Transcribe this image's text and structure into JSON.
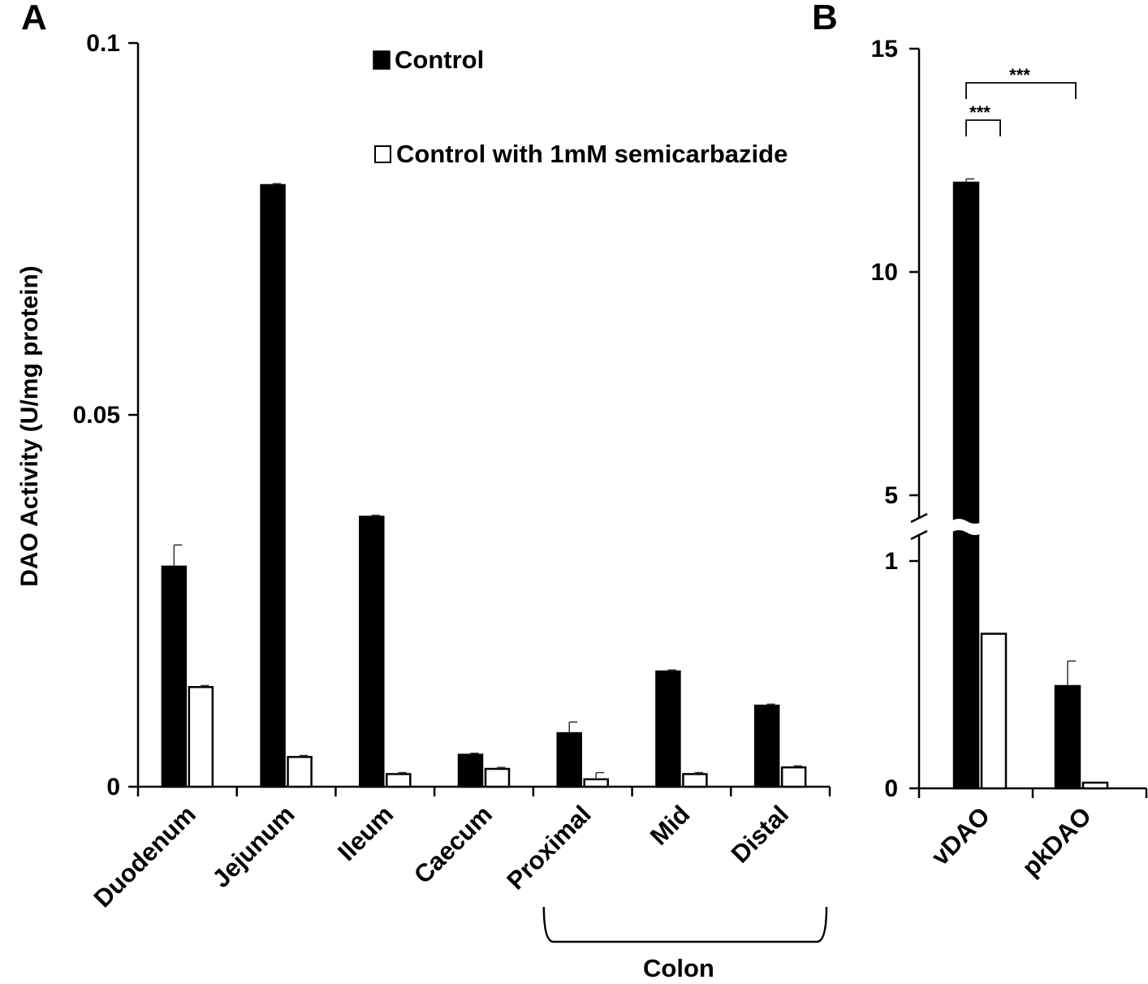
{
  "chart_data": [
    {
      "panel": "A",
      "type": "bar",
      "ylabel": "DAO Activity  (U/mg protein)",
      "ylim": [
        0,
        0.1
      ],
      "yticks": [
        "0",
        "0.05",
        "0.1"
      ],
      "categories": [
        "Duodenum",
        "Jejunum",
        "Ileum",
        "Caecum",
        "Proximal",
        "Mid",
        "Distal"
      ],
      "group_label": "Colon",
      "grid": false,
      "legend_position": "top-center",
      "series": [
        {
          "name": "Control",
          "color": "#000000",
          "values": [
            0.0296,
            0.0809,
            0.0363,
            0.0043,
            0.0072,
            0.0155,
            0.0109
          ],
          "errors": [
            0.0029,
            0.0002,
            0.0002,
            0.0002,
            0.0015,
            0.0002,
            0.0002
          ]
        },
        {
          "name": "Control with 1mM semicarbazide",
          "color": "#ffffff",
          "values": [
            0.0134,
            0.004,
            0.0017,
            0.0024,
            0.001,
            0.0017,
            0.0026
          ],
          "errors": [
            0.0002,
            0.0002,
            0.0002,
            0.0002,
            0.0009,
            0.0002,
            0.0002
          ]
        }
      ]
    },
    {
      "panel": "B",
      "type": "bar",
      "ylim": [
        0,
        15
      ],
      "y_axis_break": [
        1.15,
        4.6
      ],
      "yticks": [
        "0",
        "1",
        "5",
        "10",
        "15"
      ],
      "categories": [
        "vDAO",
        "pkDAO"
      ],
      "grid": false,
      "series": [
        {
          "name": "Control",
          "color": "#000000",
          "values": [
            12.0,
            0.45
          ],
          "errors": [
            0.03,
            0.11
          ]
        },
        {
          "name": "Control with 1mM semicarbazide",
          "color": "#ffffff",
          "values": [
            0.68,
            0.025
          ],
          "errors": [
            0.0,
            0.0
          ]
        }
      ],
      "significance": [
        "***",
        "***"
      ]
    }
  ]
}
